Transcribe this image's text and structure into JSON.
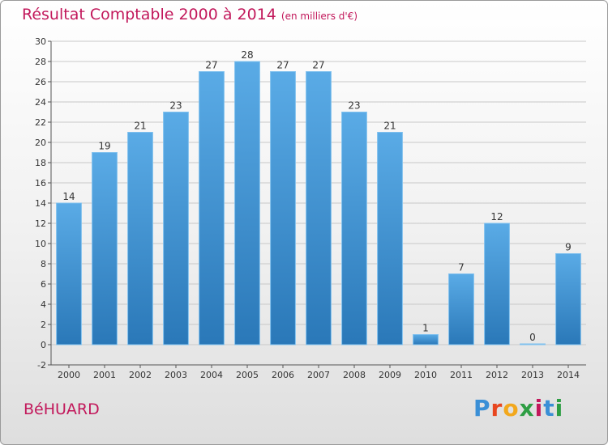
{
  "title": "Résultat Comptable 2000 à 2014",
  "title_unit": "(en milliers d'€)",
  "commune": "BéHUARD",
  "logo_letters": [
    "P",
    "r",
    "o",
    "x",
    "i",
    "t",
    "i"
  ],
  "colors": {
    "title": "#c2185b",
    "bar_top": "#5aabe6",
    "bar_bottom": "#2a78b8",
    "logo": [
      "#3a8fd6",
      "#e8461f",
      "#f2a81d",
      "#2e9e44",
      "#c2185b",
      "#3a8fd6",
      "#2e9e44"
    ]
  },
  "chart_data": {
    "type": "bar",
    "title": "Résultat Comptable 2000 à 2014",
    "subtitle": "(en milliers d'€)",
    "xlabel": "",
    "ylabel": "",
    "ylim": [
      -2,
      30
    ],
    "yticks": [
      -2,
      0,
      2,
      4,
      6,
      8,
      10,
      12,
      14,
      16,
      18,
      20,
      22,
      24,
      26,
      28,
      30
    ],
    "grid": "horizontal",
    "categories": [
      "2000",
      "2001",
      "2002",
      "2003",
      "2004",
      "2005",
      "2006",
      "2007",
      "2008",
      "2009",
      "2010",
      "2011",
      "2012",
      "2013",
      "2014"
    ],
    "values": [
      14,
      19,
      21,
      23,
      27,
      28,
      27,
      27,
      23,
      21,
      1,
      7,
      12,
      0,
      9
    ]
  }
}
